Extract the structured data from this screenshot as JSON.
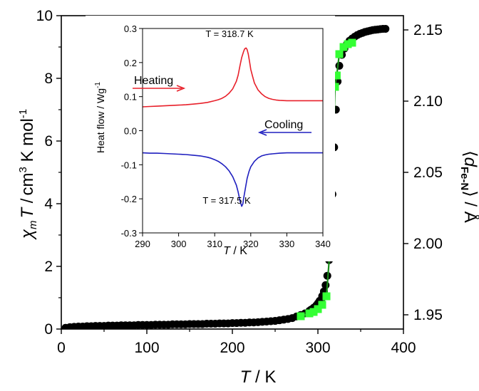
{
  "chart_data": [
    {
      "type": "scatter",
      "title": "",
      "xlabel": {
        "var": "T",
        "sep": " / ",
        "unit": "K"
      },
      "ylabel_left": {
        "var": "χ",
        "sub": "m",
        "var2": "T",
        "sep": " /",
        "unit": "cm",
        "sup": "3",
        "unit2": " K mol",
        "sup2": "-1"
      },
      "ylabel_right": {
        "open": "⟨",
        "var": "d",
        "sub": "Fe-N",
        "close": "⟩",
        "sep": " / ",
        "unit": "Å"
      },
      "xlim": [
        0,
        400
      ],
      "ylim_left": [
        0,
        10
      ],
      "ylim_right": [
        1.94,
        2.16
      ],
      "x_ticks": [
        0,
        100,
        200,
        300,
        400
      ],
      "x_tick_labels": [
        "0",
        "100",
        "200",
        "300",
        "400"
      ],
      "y_left_ticks": [
        0,
        2,
        4,
        6,
        8,
        10
      ],
      "y_left_tick_labels": [
        "0",
        "2",
        "4",
        "6",
        "8",
        "10"
      ],
      "y_right_ticks": [
        1.95,
        2.0,
        2.05,
        2.1,
        2.15
      ],
      "y_right_tick_labels": [
        "1.95",
        "2.00",
        "2.05",
        "2.10",
        "2.15"
      ],
      "grid": false,
      "series": [
        {
          "axis": "left",
          "marker": "circle",
          "color": "#000000",
          "x": [
            5,
            10,
            15,
            20,
            25,
            30,
            35,
            40,
            45,
            50,
            55,
            60,
            65,
            70,
            75,
            80,
            85,
            90,
            95,
            100,
            105,
            110,
            115,
            120,
            125,
            130,
            135,
            140,
            145,
            150,
            155,
            160,
            165,
            170,
            175,
            180,
            185,
            190,
            195,
            200,
            205,
            210,
            215,
            220,
            225,
            230,
            235,
            240,
            245,
            250,
            255,
            260,
            265,
            270,
            275,
            280,
            285,
            290,
            292,
            295,
            298,
            300,
            302,
            305,
            307,
            309,
            311,
            313,
            315,
            317,
            319,
            321,
            323,
            325,
            328,
            331,
            334,
            337,
            340,
            343,
            346,
            349,
            352,
            355,
            358,
            361,
            364,
            367,
            370,
            373,
            376,
            379
          ],
          "y": [
            0.04,
            0.06,
            0.07,
            0.08,
            0.08,
            0.09,
            0.09,
            0.1,
            0.1,
            0.1,
            0.11,
            0.11,
            0.11,
            0.12,
            0.12,
            0.12,
            0.12,
            0.13,
            0.13,
            0.13,
            0.13,
            0.14,
            0.14,
            0.14,
            0.14,
            0.15,
            0.15,
            0.15,
            0.15,
            0.16,
            0.16,
            0.16,
            0.16,
            0.17,
            0.17,
            0.17,
            0.18,
            0.18,
            0.18,
            0.19,
            0.19,
            0.2,
            0.2,
            0.21,
            0.21,
            0.22,
            0.23,
            0.24,
            0.25,
            0.26,
            0.28,
            0.3,
            0.32,
            0.35,
            0.4,
            0.45,
            0.5,
            0.58,
            0.62,
            0.68,
            0.75,
            0.82,
            0.9,
            1.05,
            1.2,
            1.4,
            1.7,
            2.2,
            3.0,
            4.3,
            5.8,
            7.0,
            7.9,
            8.4,
            8.75,
            8.95,
            9.1,
            9.2,
            9.27,
            9.33,
            9.38,
            9.42,
            9.45,
            9.48,
            9.5,
            9.52,
            9.54,
            9.55,
            9.56,
            9.57,
            9.58,
            9.58
          ]
        },
        {
          "axis": "right",
          "marker": "square",
          "color": "#33ff33",
          "line_color": "#1a8c1a",
          "x": [
            280,
            290,
            295,
            300,
            305,
            310,
            315,
            320,
            322,
            325,
            330,
            335,
            340
          ],
          "y": [
            1.949,
            1.951,
            1.952,
            1.954,
            1.957,
            1.963,
            2.003,
            2.11,
            2.118,
            2.133,
            2.138,
            2.14,
            2.141
          ]
        }
      ]
    },
    {
      "type": "line",
      "title": "",
      "xlabel": {
        "var": "T",
        "sep": " / ",
        "unit": "K"
      },
      "ylabel": {
        "text": "Heat flow / Wg",
        "sup": "-1"
      },
      "xlim": [
        290,
        340
      ],
      "ylim": [
        -0.3,
        0.3
      ],
      "x_ticks": [
        290,
        300,
        310,
        320,
        330,
        340
      ],
      "x_tick_labels": [
        "290",
        "300",
        "310",
        "320",
        "330",
        "340"
      ],
      "y_ticks": [
        -0.3,
        -0.2,
        -0.1,
        0.0,
        0.1,
        0.2,
        0.3
      ],
      "y_tick_labels": [
        "-0.3",
        "-0.2",
        "-0.1",
        "0.0",
        "0.1",
        "0.2",
        "0.3"
      ],
      "grid": false,
      "series": [
        {
          "label": "Heating",
          "color": "#e8202a",
          "peak_label": "T = 318.7 K",
          "x": [
            290,
            292,
            294,
            296,
            298,
            300,
            302,
            304,
            306,
            308,
            310,
            311,
            312,
            313,
            314,
            315,
            316,
            316.5,
            317,
            317.5,
            318,
            318.3,
            318.7,
            319,
            319.3,
            319.7,
            320,
            320.5,
            321,
            322,
            323,
            324,
            325,
            326,
            327,
            328,
            330,
            332,
            334,
            336,
            338,
            340
          ],
          "y": [
            0.07,
            0.071,
            0.072,
            0.073,
            0.074,
            0.075,
            0.076,
            0.078,
            0.08,
            0.083,
            0.088,
            0.091,
            0.095,
            0.101,
            0.11,
            0.123,
            0.145,
            0.163,
            0.19,
            0.215,
            0.232,
            0.24,
            0.243,
            0.238,
            0.225,
            0.2,
            0.18,
            0.16,
            0.14,
            0.12,
            0.108,
            0.1,
            0.095,
            0.092,
            0.09,
            0.089,
            0.088,
            0.088,
            0.088,
            0.088,
            0.088,
            0.088
          ]
        },
        {
          "label": "Cooling",
          "color": "#1f1fbf",
          "peak_label": "T = 317.5 K",
          "x": [
            290,
            292,
            294,
            296,
            298,
            300,
            302,
            304,
            306,
            308,
            309,
            310,
            311,
            312,
            313,
            314,
            315,
            316,
            316.5,
            317,
            317.5,
            317.8,
            318,
            318.5,
            319,
            319.5,
            320,
            321,
            322,
            323,
            324,
            325,
            326,
            328,
            330,
            332,
            334,
            336,
            338,
            340
          ],
          "y": [
            -0.065,
            -0.066,
            -0.066,
            -0.067,
            -0.068,
            -0.069,
            -0.07,
            -0.072,
            -0.074,
            -0.078,
            -0.081,
            -0.085,
            -0.09,
            -0.097,
            -0.106,
            -0.118,
            -0.135,
            -0.16,
            -0.18,
            -0.205,
            -0.222,
            -0.215,
            -0.2,
            -0.17,
            -0.14,
            -0.12,
            -0.106,
            -0.09,
            -0.08,
            -0.074,
            -0.071,
            -0.069,
            -0.068,
            -0.066,
            -0.065,
            -0.065,
            -0.065,
            -0.065,
            -0.065,
            -0.065
          ]
        }
      ]
    }
  ]
}
